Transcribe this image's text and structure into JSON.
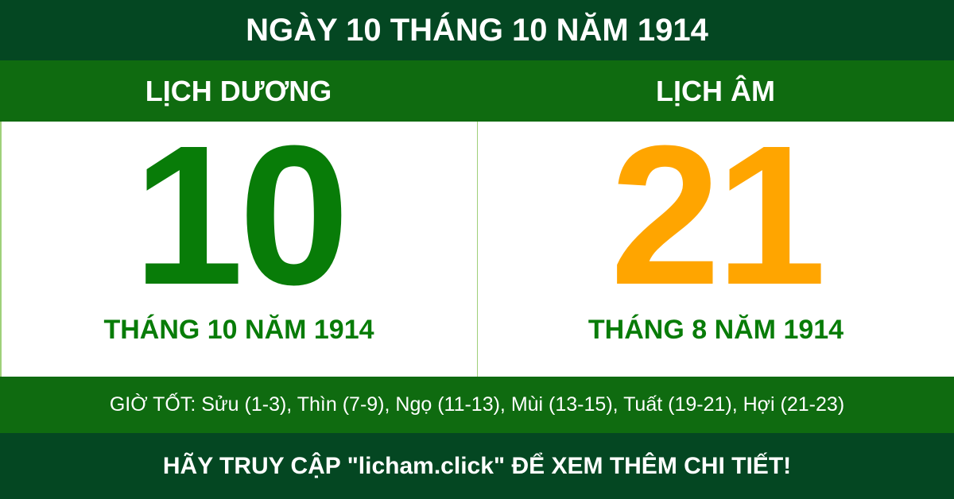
{
  "title": "NGÀY 10 THÁNG 10 NĂM 1914",
  "solar": {
    "heading": "LỊCH DƯƠNG",
    "day": "10",
    "month_year": "THÁNG 10 NĂM 1914"
  },
  "lunar": {
    "heading": "LỊCH ÂM",
    "day": "21",
    "month_year": "THÁNG 8 NĂM 1914"
  },
  "good_hours": "GIỜ TỐT: Sửu (1-3), Thìn (7-9), Ngọ (11-13), Mùi (13-15), Tuất (19-21), Hợi (21-23)",
  "footer": "HÃY TRUY CẬP \"licham.click\" ĐỂ XEM THÊM CHI TIẾT!",
  "colors": {
    "dark_green": "#044722",
    "green": "#0f6b10",
    "solar_day": "#087c08",
    "lunar_day": "#ffa500"
  }
}
